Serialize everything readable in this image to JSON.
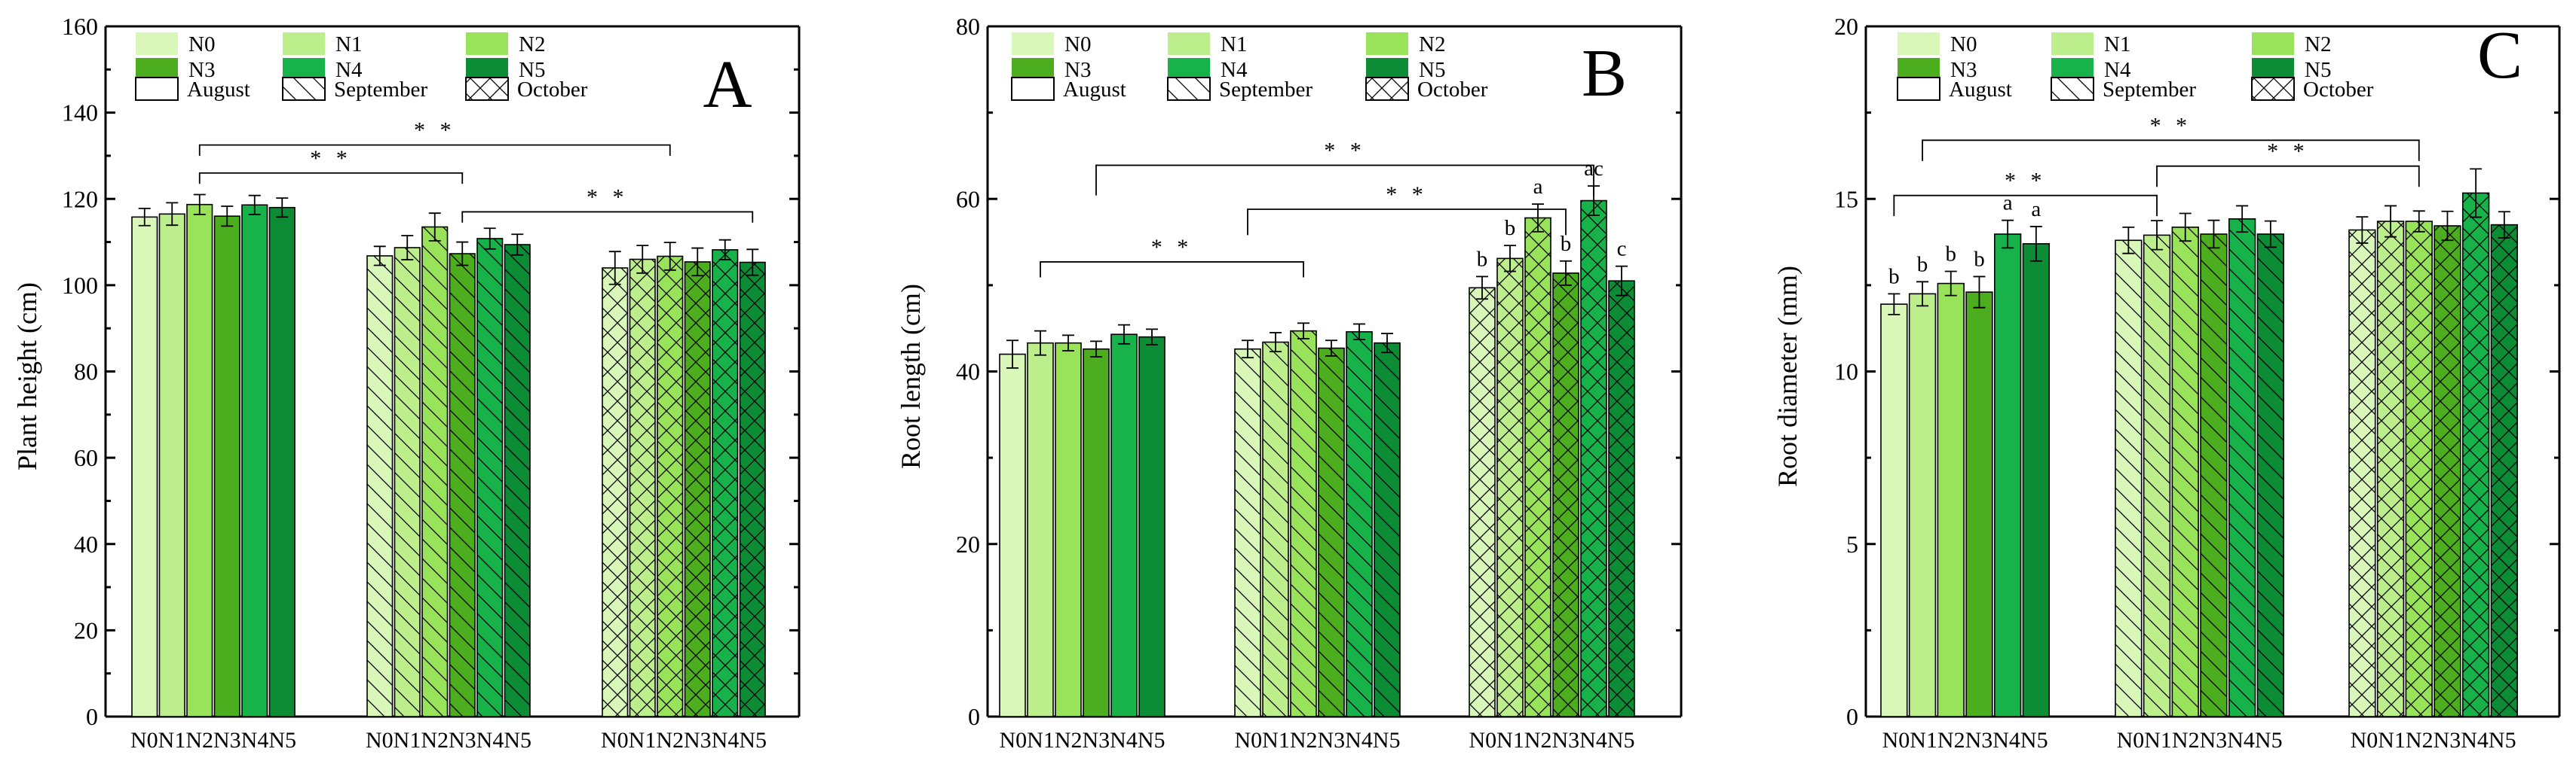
{
  "colors": {
    "N0": "#d9f7b8",
    "N1": "#bdee8c",
    "N2": "#99e35a",
    "N3": "#4cad1f",
    "N4": "#17b24a",
    "N5": "#0d8c36"
  },
  "legend": {
    "treatments": [
      "N0",
      "N1",
      "N2",
      "N3",
      "N4",
      "N5"
    ],
    "months": [
      {
        "label": "August",
        "pattern": "none"
      },
      {
        "label": "September",
        "pattern": "diag"
      },
      {
        "label": "October",
        "pattern": "cross"
      }
    ]
  },
  "chart_data": [
    {
      "panel": "A",
      "type": "bar",
      "ylabel": "Plant height (cm)",
      "ylim": [
        0,
        160
      ],
      "yticks": [
        0,
        20,
        40,
        60,
        80,
        100,
        120,
        140,
        160
      ],
      "group_label": "N0N1N2N3N4N5",
      "categories": [
        "N0",
        "N1",
        "N2",
        "N3",
        "N4",
        "N5"
      ],
      "groups": [
        "August",
        "September",
        "October"
      ],
      "values": [
        [
          115.8,
          116.5,
          118.7,
          116.0,
          118.6,
          118.0
        ],
        [
          106.8,
          108.7,
          113.5,
          107.3,
          110.8,
          109.4
        ],
        [
          104.0,
          106.0,
          106.7,
          105.4,
          108.2,
          105.3
        ]
      ],
      "errors": [
        [
          2.0,
          2.6,
          2.3,
          2.3,
          2.2,
          2.2
        ],
        [
          2.2,
          2.8,
          3.2,
          2.7,
          2.4,
          2.4
        ],
        [
          3.8,
          3.2,
          3.2,
          3.2,
          2.3,
          3.0
        ]
      ],
      "letters": [],
      "brackets": [
        {
          "from": [
            0,
            2
          ],
          "to": [
            1,
            3
          ],
          "y": 126,
          "drop": 2.5,
          "text": "* *"
        },
        {
          "from": [
            0,
            2
          ],
          "to": [
            2,
            2
          ],
          "y": 132.5,
          "drop": 2.5,
          "text": "* *"
        },
        {
          "from": [
            1,
            3
          ],
          "to": [
            2,
            5
          ],
          "y": 117,
          "drop": 2.5,
          "text": "* *"
        }
      ]
    },
    {
      "panel": "B",
      "type": "bar",
      "ylabel": "Root length (cm)",
      "ylim": [
        0,
        80
      ],
      "yticks": [
        0,
        20,
        40,
        60,
        80
      ],
      "group_label": "N0N1N2N3N4N5",
      "categories": [
        "N0",
        "N1",
        "N2",
        "N3",
        "N4",
        "N5"
      ],
      "groups": [
        "August",
        "September",
        "October"
      ],
      "values": [
        [
          42.0,
          43.3,
          43.3,
          42.6,
          44.3,
          44.0
        ],
        [
          42.6,
          43.4,
          44.7,
          42.7,
          44.6,
          43.3
        ],
        [
          49.7,
          53.1,
          57.8,
          51.4,
          59.8,
          50.5
        ]
      ],
      "errors": [
        [
          1.6,
          1.4,
          0.9,
          0.9,
          1.1,
          0.9
        ],
        [
          1.0,
          1.1,
          0.9,
          0.9,
          0.9,
          1.1
        ],
        [
          1.3,
          1.5,
          1.6,
          1.4,
          1.7,
          1.7
        ]
      ],
      "letters": [
        {
          "group": 2,
          "bar": 0,
          "text": "b"
        },
        {
          "group": 2,
          "bar": 1,
          "text": "b"
        },
        {
          "group": 2,
          "bar": 2,
          "text": "a"
        },
        {
          "group": 2,
          "bar": 3,
          "text": "b"
        },
        {
          "group": 2,
          "bar": 4,
          "text": "ac"
        },
        {
          "group": 2,
          "bar": 5,
          "text": "c"
        }
      ],
      "brackets": [
        {
          "from": [
            0,
            1
          ],
          "to": [
            1,
            2
          ],
          "y": 52.7,
          "drop": 1.8,
          "text": "* *"
        },
        {
          "from": [
            0,
            3
          ],
          "to": [
            2,
            4
          ],
          "y": 63.9,
          "drop": 3.5,
          "text": "* *"
        },
        {
          "from": [
            1,
            0
          ],
          "to": [
            2,
            3
          ],
          "y": 58.8,
          "drop": 3.0,
          "text": "* *"
        }
      ]
    },
    {
      "panel": "C",
      "type": "bar",
      "ylabel": "Root diameter (mm)",
      "ylim": [
        0,
        20
      ],
      "yticks": [
        0,
        5,
        10,
        15,
        20
      ],
      "group_label": "N0N1N2N3N4N5",
      "categories": [
        "N0",
        "N1",
        "N2",
        "N3",
        "N4",
        "N5"
      ],
      "groups": [
        "August",
        "September",
        "October"
      ],
      "values": [
        [
          11.95,
          12.25,
          12.55,
          12.3,
          13.98,
          13.7
        ],
        [
          13.8,
          13.95,
          14.18,
          13.98,
          14.42,
          13.98
        ],
        [
          14.1,
          14.35,
          14.35,
          14.22,
          15.17,
          14.25
        ]
      ],
      "errors": [
        [
          0.3,
          0.35,
          0.35,
          0.45,
          0.4,
          0.5
        ],
        [
          0.38,
          0.42,
          0.4,
          0.4,
          0.38,
          0.38
        ],
        [
          0.38,
          0.45,
          0.3,
          0.42,
          0.7,
          0.38
        ]
      ],
      "letters": [
        {
          "group": 0,
          "bar": 0,
          "text": "b"
        },
        {
          "group": 0,
          "bar": 1,
          "text": "b"
        },
        {
          "group": 0,
          "bar": 2,
          "text": "b"
        },
        {
          "group": 0,
          "bar": 3,
          "text": "b"
        },
        {
          "group": 0,
          "bar": 4,
          "text": "a"
        },
        {
          "group": 0,
          "bar": 5,
          "text": "a"
        }
      ],
      "brackets": [
        {
          "from": [
            0,
            0
          ],
          "to": [
            1,
            1
          ],
          "y": 15.1,
          "drop": 0.6,
          "text": "* *"
        },
        {
          "from": [
            0,
            1
          ],
          "to": [
            2,
            2
          ],
          "y": 16.7,
          "drop": 0.6,
          "text": "* *"
        },
        {
          "from": [
            1,
            1
          ],
          "to": [
            2,
            2
          ],
          "y": 15.95,
          "drop": 0.6,
          "text": "* *"
        }
      ]
    }
  ]
}
